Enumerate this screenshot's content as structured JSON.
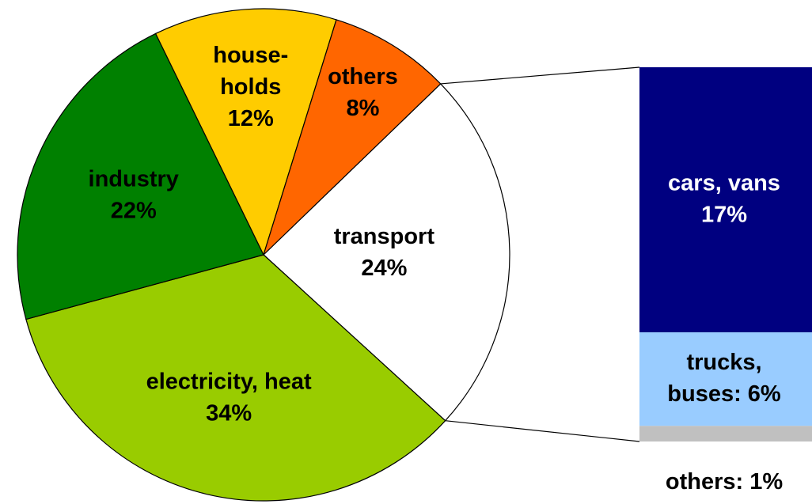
{
  "chart_data": {
    "type": "pie",
    "labels": [
      "transport\n24%",
      "electricity, heat\n34%",
      "industry\n22%",
      "house-\nholds\n12%",
      "others\n8%"
    ],
    "values": [
      24,
      34,
      22,
      12,
      8
    ],
    "colors": [
      "#ffffff",
      "#99cc00",
      "#008000",
      "#ffcc00",
      "#ff6600"
    ],
    "breakdown": {
      "type": "bar",
      "labels": [
        "cars, vans\n17%",
        "trucks,\nbuses: 6%",
        "others: 1%"
      ],
      "values": [
        17,
        6,
        1
      ],
      "colors": [
        "#000080",
        "#99ccff",
        "#c0c0c0"
      ]
    }
  }
}
